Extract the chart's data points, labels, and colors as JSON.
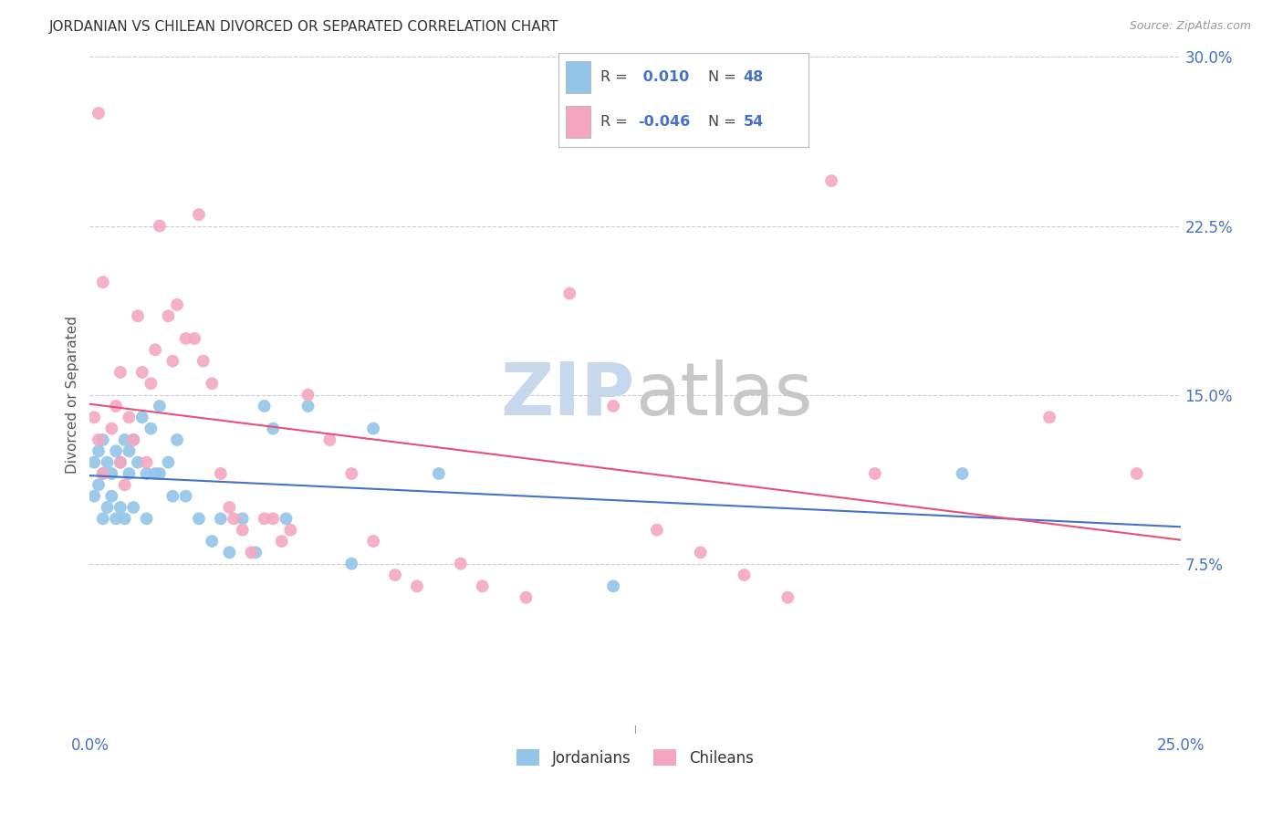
{
  "title": "JORDANIAN VS CHILEAN DIVORCED OR SEPARATED CORRELATION CHART",
  "source": "Source: ZipAtlas.com",
  "ylabel": "Divorced or Separated",
  "xlim": [
    0.0,
    0.25
  ],
  "ylim": [
    0.0,
    0.3
  ],
  "color_jordanian": "#92C5E8",
  "color_chilean": "#F4A6C0",
  "color_trend_jordanian": "#4472C4",
  "color_trend_chilean": "#E8507A",
  "watermark_color": "#C8D8EC",
  "background_color": "#FFFFFF",
  "jordanian_x": [
    0.001,
    0.001,
    0.002,
    0.002,
    0.003,
    0.003,
    0.003,
    0.004,
    0.004,
    0.005,
    0.005,
    0.006,
    0.006,
    0.007,
    0.007,
    0.008,
    0.008,
    0.009,
    0.009,
    0.01,
    0.01,
    0.011,
    0.012,
    0.013,
    0.013,
    0.014,
    0.015,
    0.016,
    0.016,
    0.018,
    0.019,
    0.02,
    0.022,
    0.025,
    0.028,
    0.03,
    0.032,
    0.035,
    0.038,
    0.04,
    0.042,
    0.045,
    0.05,
    0.06,
    0.065,
    0.08,
    0.12,
    0.2
  ],
  "jordanian_y": [
    0.12,
    0.105,
    0.125,
    0.11,
    0.13,
    0.115,
    0.095,
    0.12,
    0.1,
    0.115,
    0.105,
    0.125,
    0.095,
    0.12,
    0.1,
    0.13,
    0.095,
    0.125,
    0.115,
    0.13,
    0.1,
    0.12,
    0.14,
    0.115,
    0.095,
    0.135,
    0.115,
    0.145,
    0.115,
    0.12,
    0.105,
    0.13,
    0.105,
    0.095,
    0.085,
    0.095,
    0.08,
    0.095,
    0.08,
    0.145,
    0.135,
    0.095,
    0.145,
    0.075,
    0.135,
    0.115,
    0.065,
    0.115
  ],
  "chilean_x": [
    0.001,
    0.002,
    0.002,
    0.003,
    0.003,
    0.005,
    0.006,
    0.007,
    0.007,
    0.008,
    0.009,
    0.01,
    0.011,
    0.012,
    0.013,
    0.014,
    0.015,
    0.016,
    0.018,
    0.019,
    0.02,
    0.022,
    0.024,
    0.025,
    0.026,
    0.028,
    0.03,
    0.032,
    0.033,
    0.035,
    0.037,
    0.04,
    0.042,
    0.044,
    0.046,
    0.05,
    0.055,
    0.06,
    0.065,
    0.07,
    0.075,
    0.085,
    0.09,
    0.1,
    0.11,
    0.12,
    0.13,
    0.14,
    0.15,
    0.16,
    0.17,
    0.18,
    0.22,
    0.24
  ],
  "chilean_y": [
    0.14,
    0.13,
    0.275,
    0.115,
    0.2,
    0.135,
    0.145,
    0.12,
    0.16,
    0.11,
    0.14,
    0.13,
    0.185,
    0.16,
    0.12,
    0.155,
    0.17,
    0.225,
    0.185,
    0.165,
    0.19,
    0.175,
    0.175,
    0.23,
    0.165,
    0.155,
    0.115,
    0.1,
    0.095,
    0.09,
    0.08,
    0.095,
    0.095,
    0.085,
    0.09,
    0.15,
    0.13,
    0.115,
    0.085,
    0.07,
    0.065,
    0.075,
    0.065,
    0.06,
    0.195,
    0.145,
    0.09,
    0.08,
    0.07,
    0.06,
    0.245,
    0.115,
    0.14,
    0.115
  ]
}
